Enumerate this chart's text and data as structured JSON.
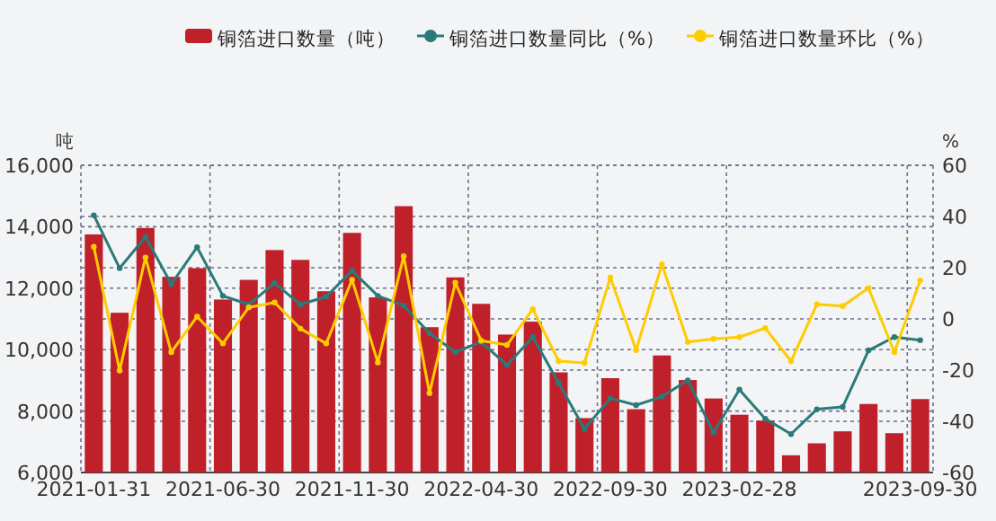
{
  "chart_data": {
    "type": "bar",
    "ylabel": "吨",
    "y2label": "%",
    "categories": [
      "2021-01-31",
      null,
      null,
      null,
      null,
      "2021-06-30",
      null,
      null,
      null,
      null,
      "2021-11-30",
      null,
      null,
      null,
      null,
      "2022-04-30",
      null,
      null,
      null,
      null,
      "2022-09-30",
      null,
      null,
      null,
      null,
      "2023-02-28",
      null,
      null,
      null,
      null,
      null,
      null,
      "2023-09-30"
    ],
    "series": [
      {
        "name": "铜箔进口数量（吨）",
        "color": "#c0202a",
        "values": [
          13750,
          11200,
          13960,
          12370,
          12650,
          11630,
          12270,
          13240,
          12920,
          11900,
          13800,
          11700,
          14670,
          10730,
          12350,
          11490,
          10490,
          10910,
          9260,
          7770,
          9070,
          8060,
          9810,
          9010,
          8410,
          7880,
          7690,
          6560,
          6950,
          7340,
          8230,
          7280,
          8390
        ]
      },
      {
        "name": "铜箔进口数量同比（%）",
        "type": "line",
        "axis": "y2",
        "color": "#2a7a7a",
        "marker": "circle",
        "values": [
          40.5,
          19.8,
          32,
          13.6,
          28,
          9,
          5.6,
          14,
          5.6,
          8.7,
          18.8,
          9,
          5.2,
          -5.6,
          -13,
          -9,
          -18.1,
          -7.1,
          -25,
          -43,
          -31,
          -33.7,
          -30.4,
          -24,
          -44.4,
          -27.6,
          -39,
          -45,
          -35.3,
          -34.4,
          -12.3,
          -7.1,
          -8.3
        ]
      },
      {
        "name": "铜箔进口数量环比（%）",
        "type": "line",
        "axis": "y2",
        "color": "#ffcc00",
        "marker": "circle",
        "values": [
          28.2,
          -20.2,
          24,
          -13,
          0.9,
          -9.6,
          4.5,
          6.4,
          -3.8,
          -9.6,
          15.3,
          -17,
          24.5,
          -29,
          14.1,
          -8.5,
          -10.2,
          3.8,
          -16.5,
          -17.2,
          16.2,
          -12.2,
          21.3,
          -9,
          -7.8,
          -7.1,
          -3.6,
          -16.5,
          5.7,
          5,
          12,
          -13,
          15
        ]
      }
    ],
    "ylim": [
      6000,
      16000
    ],
    "yticks": [
      {
        "value": 6000,
        "label": "6,000"
      },
      {
        "value": 8000,
        "label": "8,000"
      },
      {
        "value": 10000,
        "label": "10,000"
      },
      {
        "value": 12000,
        "label": "12,000"
      },
      {
        "value": 14000,
        "label": "14,000"
      },
      {
        "value": 16000,
        "label": "16,000"
      }
    ],
    "y2lim": [
      -60,
      60
    ],
    "y2ticks": [
      -60,
      -40,
      -20,
      0,
      20,
      40,
      60
    ],
    "grid": true,
    "legend": "top"
  }
}
